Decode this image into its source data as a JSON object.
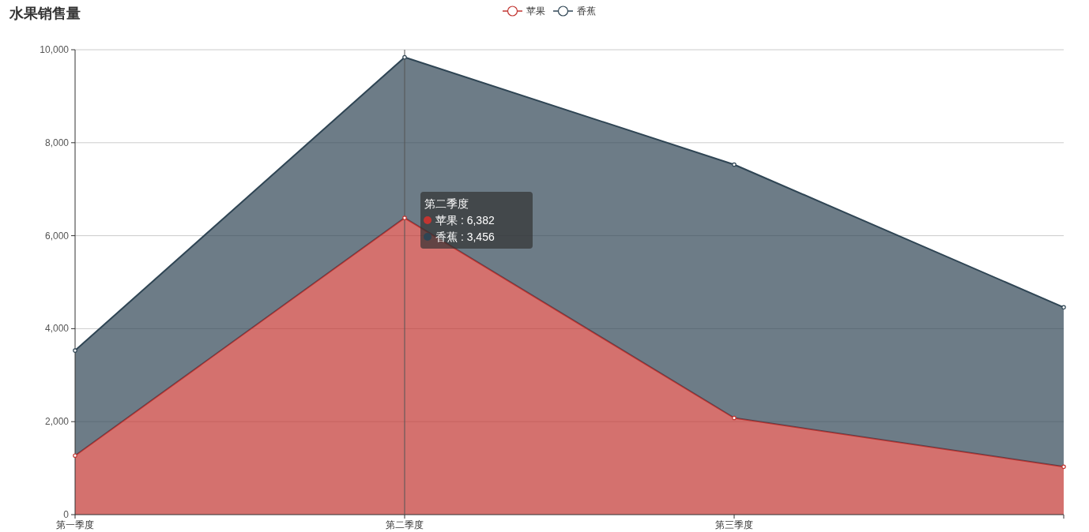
{
  "chart_data": {
    "type": "area",
    "title": "水果销售量",
    "categories": [
      "第一季度",
      "第二季度",
      "第三季度",
      null
    ],
    "series": [
      {
        "name": "苹果",
        "color": "#c23531",
        "values": [
          1270,
          6382,
          2080,
          1030
        ]
      },
      {
        "name": "香蕉",
        "color": "#2f4554",
        "values": [
          2260,
          3456,
          5450,
          3430
        ]
      }
    ],
    "stacked": true,
    "ylim": [
      0,
      10000
    ],
    "yticks": [
      0,
      {
        "value": 2000,
        "label": "2,000"
      },
      {
        "value": 4000,
        "label": "4,000"
      },
      {
        "value": 6000,
        "label": "6,000"
      },
      {
        "value": 8000,
        "label": "8,000"
      },
      {
        "value": 10000,
        "label": "10,000"
      }
    ],
    "grid": "y",
    "legend": "top",
    "marker": "circle",
    "ref_lines": [
      {
        "axis": "x",
        "value": "第二季度",
        "color": "#555555"
      }
    ],
    "annotations": [
      "第二季度",
      "苹果 : 6,382",
      "香蕉 : 3,456"
    ]
  }
}
